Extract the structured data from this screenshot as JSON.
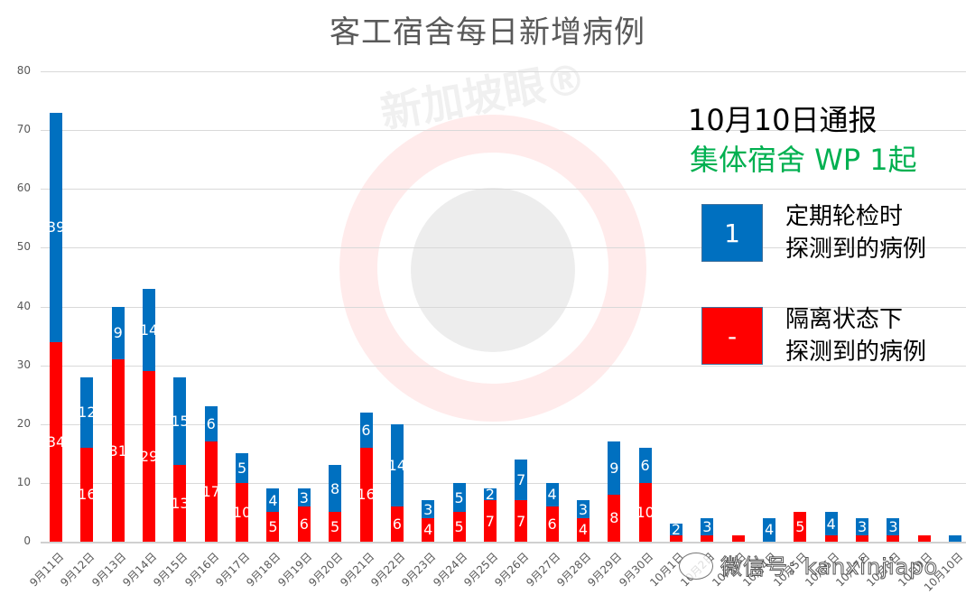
{
  "chart_data": {
    "type": "bar",
    "stacked": true,
    "title": "客工宿舍每日新增病例",
    "xlabel": "",
    "ylabel": "",
    "ylim": [
      0,
      80
    ],
    "yticks": [
      0,
      10,
      20,
      30,
      40,
      50,
      60,
      70,
      80
    ],
    "grid": true,
    "categories": [
      "9月11日",
      "9月12日",
      "9月13日",
      "9月14日",
      "9月15日",
      "9月16日",
      "9月17日",
      "9月18日",
      "9月19日",
      "9月20日",
      "9月21日",
      "9月22日",
      "9月23日",
      "9月24日",
      "9月25日",
      "9月26日",
      "9月27日",
      "9月28日",
      "9月29日",
      "9月30日",
      "10月1日",
      "10月2日",
      "10月3日",
      "10月4日",
      "10月5日",
      "10月6日",
      "10月7日",
      "10月8日",
      "10月9日",
      "10月10日"
    ],
    "series": [
      {
        "name": "隔离状态下探测到的病例",
        "color": "#ff0000",
        "values": [
          34,
          16,
          31,
          29,
          13,
          17,
          10,
          5,
          6,
          5,
          16,
          6,
          4,
          5,
          7,
          7,
          6,
          4,
          8,
          10,
          1,
          1,
          1,
          0,
          5,
          1,
          1,
          1,
          1,
          0
        ]
      },
      {
        "name": "定期轮检时探测到的病例",
        "color": "#0070c0",
        "values": [
          39,
          12,
          9,
          14,
          15,
          6,
          5,
          4,
          3,
          8,
          6,
          14,
          3,
          5,
          2,
          7,
          4,
          3,
          9,
          6,
          2,
          3,
          0,
          4,
          0,
          4,
          3,
          3,
          0,
          1
        ]
      }
    ],
    "legend_position": "right",
    "annotations": [
      "10月10日通报",
      "集体宿舍 WP 1起"
    ]
  },
  "annotation": {
    "line1": "10月10日通报",
    "line2": "集体宿舍 WP 1起"
  },
  "legend": {
    "routine": {
      "value": "1",
      "line1": "定期轮检时",
      "line2": "探测到的病例",
      "color": "#0070c0"
    },
    "isolation": {
      "value": "-",
      "line1": "隔离状态下",
      "line2": "探测到的病例",
      "color": "#ff0000"
    }
  },
  "watermark": {
    "brand": "新加坡眼®",
    "wechat": "微信号: kanxinjiapo"
  }
}
